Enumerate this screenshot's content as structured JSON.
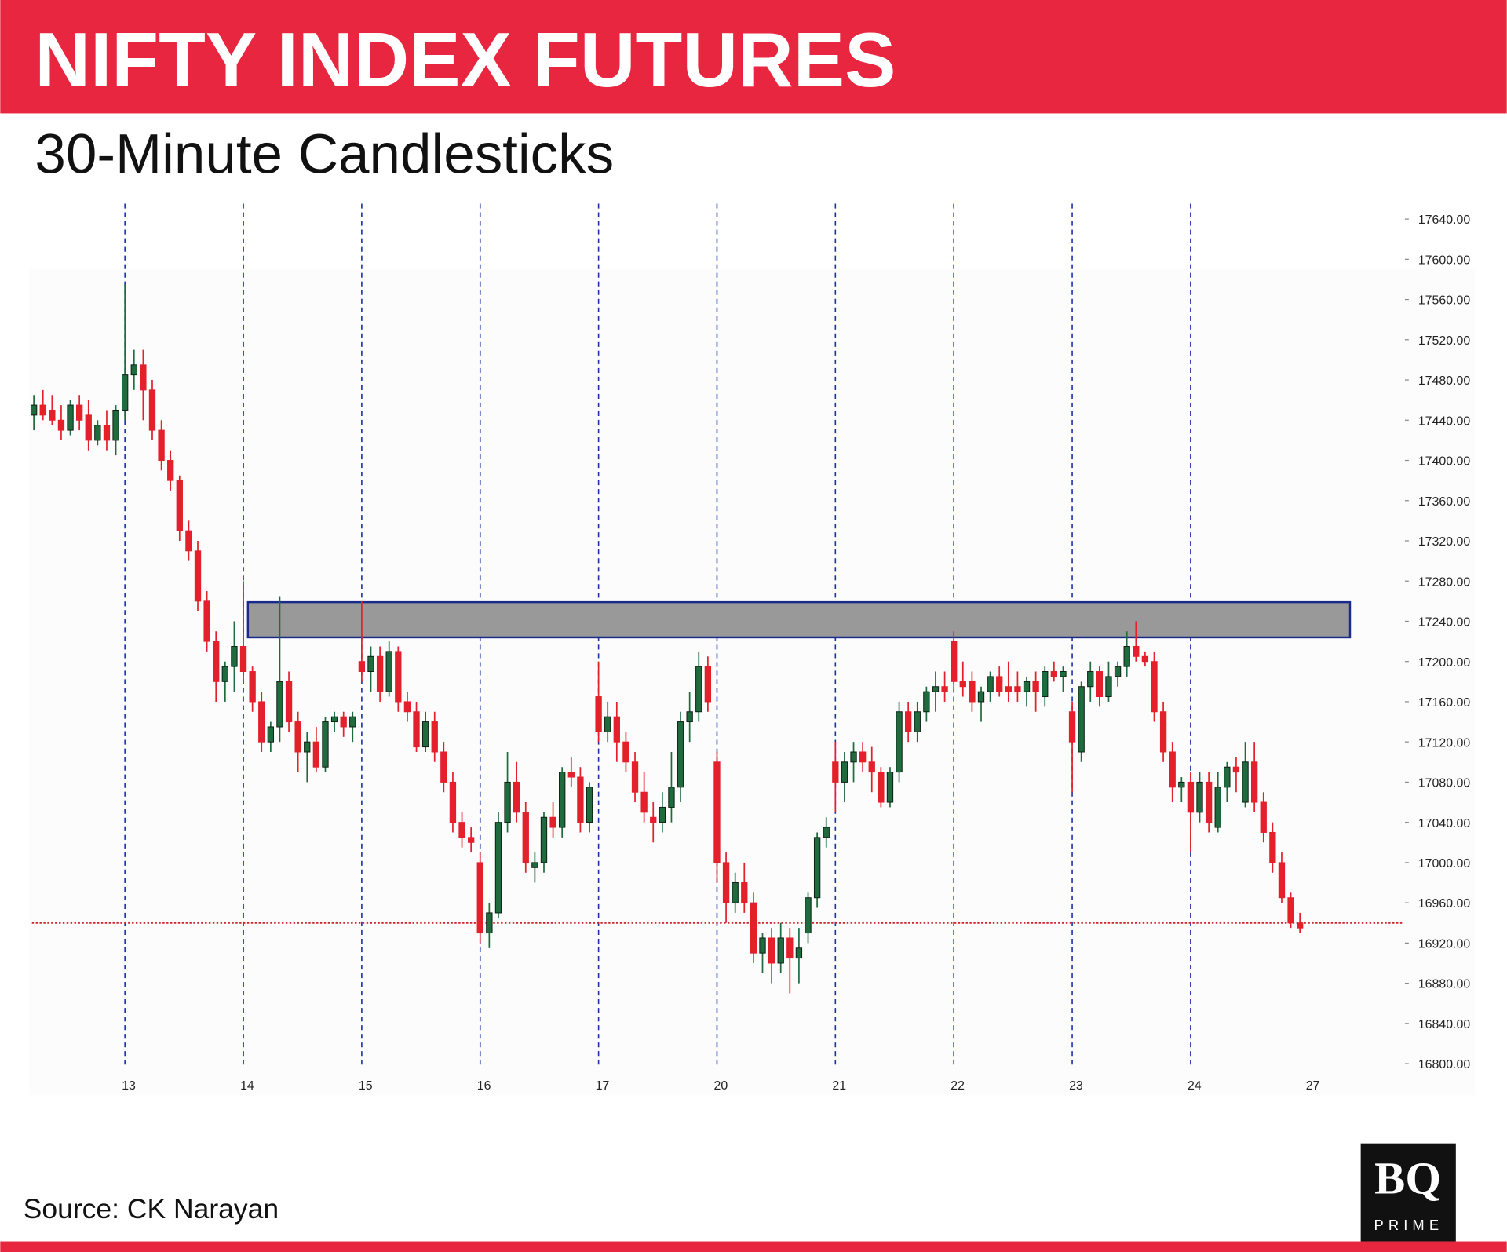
{
  "chart_data": {
    "type": "candlestick",
    "title": "NIFTY INDEX FUTURES",
    "subtitle": "30-Minute Candlesticks",
    "source": "Source: CK Narayan",
    "logo": {
      "mark": "BQ",
      "sub": "PRIME"
    },
    "up_color": "#1f6b3e",
    "down_color": "#e3202b",
    "xlim": [
      -1,
      150
    ],
    "ylim": [
      16800,
      17640
    ],
    "xticks": [
      {
        "value": 10,
        "label": "13"
      },
      {
        "value": 23,
        "label": "14"
      },
      {
        "value": 36,
        "label": "15"
      },
      {
        "value": 49,
        "label": "16"
      },
      {
        "value": 62,
        "label": "17"
      },
      {
        "value": 75,
        "label": "20"
      },
      {
        "value": 88,
        "label": "21"
      },
      {
        "value": 101,
        "label": "22"
      },
      {
        "value": 114,
        "label": "23"
      },
      {
        "value": 127,
        "label": "24"
      },
      {
        "value": 140,
        "label": "27"
      }
    ],
    "yticks": [
      {
        "value": 16800,
        "label": "16800.00"
      },
      {
        "value": 16840,
        "label": "16840.00"
      },
      {
        "value": 16880,
        "label": "16880.00"
      },
      {
        "value": 16920,
        "label": "16920.00"
      },
      {
        "value": 16960,
        "label": "16960.00"
      },
      {
        "value": 17000,
        "label": "17000.00"
      },
      {
        "value": 17040,
        "label": "17040.00"
      },
      {
        "value": 17080,
        "label": "17080.00"
      },
      {
        "value": 17120,
        "label": "17120.00"
      },
      {
        "value": 17160,
        "label": "17160.00"
      },
      {
        "value": 17200,
        "label": "17200.00"
      },
      {
        "value": 17240,
        "label": "17240.00"
      },
      {
        "value": 17280,
        "label": "17280.00"
      },
      {
        "value": 17320,
        "label": "17320.00"
      },
      {
        "value": 17360,
        "label": "17360.00"
      },
      {
        "value": 17400,
        "label": "17400.00"
      },
      {
        "value": 17440,
        "label": "17440.00"
      },
      {
        "value": 17480,
        "label": "17480.00"
      },
      {
        "value": 17520,
        "label": "17520.00"
      },
      {
        "value": 17560,
        "label": "17560.00"
      },
      {
        "value": 17600,
        "label": "17600.00"
      },
      {
        "value": 17640,
        "label": "17640.00"
      }
    ],
    "zone": {
      "ylim": [
        17224,
        17259
      ],
      "xlim": [
        23.5,
        144.5
      ]
    },
    "level": 16940,
    "candles": [
      [
        17445,
        17465,
        17430,
        17455
      ],
      [
        17455,
        17470,
        17440,
        17445
      ],
      [
        17450,
        17465,
        17435,
        17440
      ],
      [
        17440,
        17455,
        17420,
        17430
      ],
      [
        17430,
        17460,
        17425,
        17455
      ],
      [
        17455,
        17465,
        17430,
        17440
      ],
      [
        17445,
        17460,
        17410,
        17420
      ],
      [
        17420,
        17440,
        17415,
        17435
      ],
      [
        17435,
        17450,
        17410,
        17420
      ],
      [
        17420,
        17455,
        17405,
        17450
      ],
      [
        17450,
        17575,
        17440,
        17485
      ],
      [
        17485,
        17510,
        17470,
        17495
      ],
      [
        17495,
        17510,
        17440,
        17470
      ],
      [
        17470,
        17480,
        17420,
        17430
      ],
      [
        17430,
        17440,
        17390,
        17400
      ],
      [
        17400,
        17410,
        17370,
        17380
      ],
      [
        17380,
        17385,
        17320,
        17330
      ],
      [
        17330,
        17340,
        17300,
        17310
      ],
      [
        17310,
        17320,
        17250,
        17260
      ],
      [
        17260,
        17270,
        17210,
        17220
      ],
      [
        17220,
        17230,
        17160,
        17180
      ],
      [
        17180,
        17200,
        17160,
        17195
      ],
      [
        17195,
        17240,
        17170,
        17215
      ],
      [
        17215,
        17280,
        17180,
        17190
      ],
      [
        17190,
        17195,
        17150,
        17160
      ],
      [
        17160,
        17170,
        17110,
        17120
      ],
      [
        17120,
        17140,
        17110,
        17135
      ],
      [
        17135,
        17265,
        17120,
        17180
      ],
      [
        17180,
        17190,
        17130,
        17140
      ],
      [
        17140,
        17150,
        17090,
        17110
      ],
      [
        17110,
        17130,
        17080,
        17120
      ],
      [
        17120,
        17135,
        17090,
        17095
      ],
      [
        17095,
        17145,
        17090,
        17140
      ],
      [
        17140,
        17150,
        17130,
        17145
      ],
      [
        17145,
        17150,
        17125,
        17135
      ],
      [
        17135,
        17150,
        17120,
        17145
      ],
      [
        17200,
        17260,
        17180,
        17190
      ],
      [
        17190,
        17215,
        17170,
        17205
      ],
      [
        17205,
        17215,
        17160,
        17170
      ],
      [
        17170,
        17220,
        17165,
        17210
      ],
      [
        17210,
        17215,
        17150,
        17160
      ],
      [
        17160,
        17170,
        17140,
        17150
      ],
      [
        17150,
        17160,
        17110,
        17115
      ],
      [
        17115,
        17150,
        17110,
        17140
      ],
      [
        17140,
        17150,
        17100,
        17110
      ],
      [
        17110,
        17120,
        17070,
        17080
      ],
      [
        17080,
        17090,
        17030,
        17040
      ],
      [
        17040,
        17050,
        17015,
        17025
      ],
      [
        17025,
        17035,
        17010,
        17020
      ],
      [
        17000,
        17010,
        16920,
        16930
      ],
      [
        16930,
        16960,
        16915,
        16950
      ],
      [
        16950,
        17050,
        16945,
        17040
      ],
      [
        17040,
        17110,
        17030,
        17080
      ],
      [
        17080,
        17100,
        17040,
        17050
      ],
      [
        17050,
        17060,
        16990,
        17000
      ],
      [
        16995,
        17010,
        16980,
        17000
      ],
      [
        17000,
        17050,
        16990,
        17045
      ],
      [
        17045,
        17060,
        17025,
        17035
      ],
      [
        17035,
        17095,
        17025,
        17090
      ],
      [
        17090,
        17105,
        17075,
        17085
      ],
      [
        17085,
        17095,
        17030,
        17040
      ],
      [
        17040,
        17080,
        17030,
        17075
      ],
      [
        17165,
        17200,
        17120,
        17130
      ],
      [
        17130,
        17160,
        17120,
        17145
      ],
      [
        17145,
        17160,
        17100,
        17120
      ],
      [
        17120,
        17130,
        17090,
        17100
      ],
      [
        17100,
        17110,
        17060,
        17070
      ],
      [
        17070,
        17090,
        17040,
        17050
      ],
      [
        17045,
        17060,
        17020,
        17040
      ],
      [
        17040,
        17070,
        17030,
        17055
      ],
      [
        17055,
        17110,
        17040,
        17075
      ],
      [
        17075,
        17150,
        17060,
        17140
      ],
      [
        17140,
        17170,
        17120,
        17150
      ],
      [
        17150,
        17210,
        17140,
        17195
      ],
      [
        17195,
        17205,
        17150,
        17160
      ],
      [
        17100,
        17110,
        16980,
        17000
      ],
      [
        17000,
        17010,
        16940,
        16960
      ],
      [
        16960,
        16990,
        16950,
        16980
      ],
      [
        16980,
        17000,
        16950,
        16960
      ],
      [
        16960,
        16970,
        16900,
        16910
      ],
      [
        16910,
        16930,
        16890,
        16925
      ],
      [
        16925,
        16935,
        16880,
        16900
      ],
      [
        16900,
        16940,
        16890,
        16925
      ],
      [
        16925,
        16935,
        16870,
        16905
      ],
      [
        16905,
        16935,
        16880,
        16915
      ],
      [
        16930,
        16970,
        16920,
        16965
      ],
      [
        16965,
        17030,
        16955,
        17025
      ],
      [
        17025,
        17045,
        17015,
        17035
      ],
      [
        17100,
        17120,
        17050,
        17080
      ],
      [
        17080,
        17110,
        17060,
        17100
      ],
      [
        17100,
        17120,
        17080,
        17110
      ],
      [
        17110,
        17120,
        17090,
        17100
      ],
      [
        17100,
        17115,
        17070,
        17090
      ],
      [
        17090,
        17095,
        17055,
        17060
      ],
      [
        17060,
        17095,
        17055,
        17090
      ],
      [
        17090,
        17160,
        17080,
        17150
      ],
      [
        17150,
        17160,
        17120,
        17130
      ],
      [
        17130,
        17160,
        17120,
        17150
      ],
      [
        17150,
        17175,
        17140,
        17170
      ],
      [
        17170,
        17190,
        17150,
        17175
      ],
      [
        17175,
        17190,
        17160,
        17170
      ],
      [
        17220,
        17230,
        17170,
        17180
      ],
      [
        17180,
        17200,
        17165,
        17175
      ],
      [
        17180,
        17190,
        17150,
        17160
      ],
      [
        17160,
        17175,
        17140,
        17170
      ],
      [
        17170,
        17190,
        17160,
        17185
      ],
      [
        17185,
        17195,
        17165,
        17170
      ],
      [
        17175,
        17200,
        17160,
        17170
      ],
      [
        17175,
        17190,
        17160,
        17170
      ],
      [
        17170,
        17185,
        17155,
        17180
      ],
      [
        17180,
        17190,
        17150,
        17170
      ],
      [
        17165,
        17195,
        17155,
        17190
      ],
      [
        17190,
        17200,
        17180,
        17185
      ],
      [
        17185,
        17195,
        17170,
        17190
      ],
      [
        17150,
        17160,
        17070,
        17120
      ],
      [
        17110,
        17180,
        17100,
        17175
      ],
      [
        17175,
        17200,
        17160,
        17190
      ],
      [
        17190,
        17195,
        17155,
        17165
      ],
      [
        17165,
        17200,
        17160,
        17185
      ],
      [
        17185,
        17200,
        17175,
        17195
      ],
      [
        17195,
        17230,
        17185,
        17215
      ],
      [
        17215,
        17240,
        17200,
        17205
      ],
      [
        17205,
        17210,
        17195,
        17200
      ],
      [
        17200,
        17210,
        17140,
        17150
      ],
      [
        17150,
        17160,
        17100,
        17110
      ],
      [
        17110,
        17120,
        17060,
        17075
      ],
      [
        17075,
        17085,
        17060,
        17080
      ],
      [
        17080,
        17090,
        17010,
        17050
      ],
      [
        17050,
        17090,
        17040,
        17080
      ],
      [
        17080,
        17090,
        17030,
        17040
      ],
      [
        17035,
        17090,
        17030,
        17075
      ],
      [
        17075,
        17100,
        17060,
        17095
      ],
      [
        17095,
        17105,
        17070,
        17090
      ],
      [
        17060,
        17120,
        17055,
        17100
      ],
      [
        17100,
        17120,
        17050,
        17060
      ],
      [
        17060,
        17070,
        17020,
        17030
      ],
      [
        17030,
        17040,
        16990,
        17000
      ],
      [
        17000,
        17010,
        16960,
        16965
      ],
      [
        16965,
        16970,
        16935,
        16940
      ],
      [
        16940,
        16950,
        16930,
        16935
      ]
    ]
  }
}
